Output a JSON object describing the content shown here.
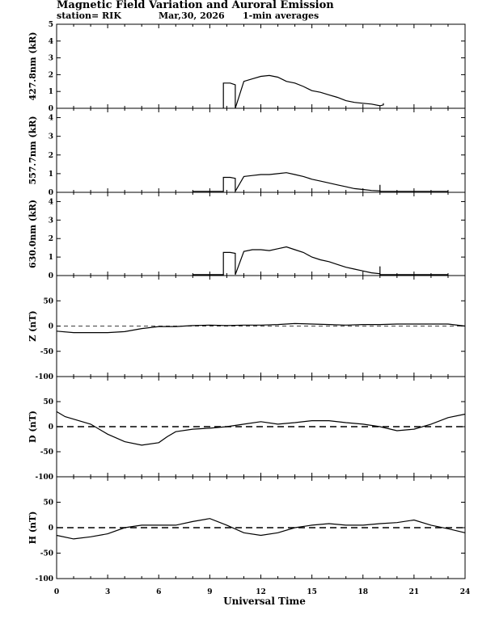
{
  "header": {
    "title": "Magnetic Field Variation and Auroral Emission",
    "station": "station= RIK",
    "date": "Mar,30, 2026",
    "note": "1-min averages"
  },
  "chart_data": [
    {
      "type": "line",
      "name": "panel-4278",
      "ylabel": "427.8nm (kR)",
      "ylim": [
        0,
        5
      ],
      "yticks": [
        0,
        1,
        2,
        3,
        4,
        5
      ],
      "xlim": [
        0,
        24
      ],
      "zero_line": "none",
      "series": [
        {
          "name": "427.8nm",
          "x": [
            9.8,
            9.8,
            10.2,
            10.5,
            10.5,
            11.0,
            11.5,
            12.0,
            12.5,
            13.0,
            13.5,
            14.0,
            14.5,
            15.0,
            15.5,
            16.0,
            16.5,
            17.0,
            17.5,
            18.0,
            18.5,
            19.0,
            19.2,
            19.2
          ],
          "y": [
            0,
            1.5,
            1.5,
            1.4,
            0,
            1.6,
            1.75,
            1.9,
            1.95,
            1.85,
            1.6,
            1.5,
            1.3,
            1.05,
            0.95,
            0.8,
            0.65,
            0.45,
            0.35,
            0.3,
            0.25,
            0.15,
            0.2,
            0.3
          ]
        }
      ]
    },
    {
      "type": "line",
      "name": "panel-5577",
      "ylabel": "557.7nm (kR)",
      "ylim": [
        0,
        4.5
      ],
      "yticks": [
        0,
        1,
        2,
        3,
        4
      ],
      "xlim": [
        0,
        24
      ],
      "zero_line": "none",
      "series": [
        {
          "name": "557.7nm",
          "x": [
            8.0,
            9.8,
            9.8,
            10.2,
            10.5,
            10.5,
            11.0,
            11.5,
            12.0,
            12.5,
            13.0,
            13.5,
            14.0,
            14.5,
            15.0,
            15.5,
            16.0,
            16.5,
            17.0,
            17.5,
            18.0,
            18.5,
            19.0,
            19.0,
            19.0,
            23.0
          ],
          "y": [
            0.05,
            0.05,
            0.8,
            0.8,
            0.75,
            0.05,
            0.85,
            0.9,
            0.95,
            0.95,
            1.0,
            1.05,
            0.95,
            0.85,
            0.7,
            0.6,
            0.5,
            0.4,
            0.3,
            0.2,
            0.15,
            0.1,
            0.08,
            0.4,
            0.05,
            0.05
          ]
        }
      ]
    },
    {
      "type": "line",
      "name": "panel-6300",
      "ylabel": "630.0nm (kR)",
      "ylim": [
        0,
        4.5
      ],
      "yticks": [
        0,
        1,
        2,
        3,
        4
      ],
      "xlim": [
        0,
        24
      ],
      "zero_line": "none",
      "series": [
        {
          "name": "630.0nm",
          "x": [
            8.0,
            9.8,
            9.8,
            10.2,
            10.5,
            10.5,
            11.0,
            11.5,
            12.0,
            12.5,
            13.0,
            13.5,
            14.0,
            14.5,
            15.0,
            15.5,
            16.0,
            16.5,
            17.0,
            17.5,
            18.0,
            18.5,
            19.0,
            19.0,
            19.0,
            23.0
          ],
          "y": [
            0.05,
            0.05,
            1.25,
            1.25,
            1.2,
            0.05,
            1.3,
            1.4,
            1.4,
            1.35,
            1.45,
            1.55,
            1.4,
            1.25,
            1.0,
            0.85,
            0.75,
            0.6,
            0.45,
            0.35,
            0.25,
            0.15,
            0.1,
            0.5,
            0.05,
            0.05
          ]
        }
      ]
    },
    {
      "type": "line",
      "name": "panel-z",
      "ylabel": "Z (nT)",
      "ylim": [
        -100,
        100
      ],
      "yticks": [
        -100,
        -50,
        0,
        50
      ],
      "xlim": [
        0,
        24
      ],
      "zero_line": "dashed-thin",
      "series": [
        {
          "name": "Z",
          "x": [
            0,
            1,
            2,
            3,
            4,
            5,
            6,
            7,
            8,
            9,
            10,
            11,
            12,
            13,
            14,
            15,
            16,
            17,
            18,
            19,
            20,
            21,
            22,
            23,
            24
          ],
          "y": [
            -10,
            -13,
            -13,
            -13,
            -11,
            -5,
            -1,
            -1,
            1,
            2,
            1,
            2,
            2,
            3,
            5,
            4,
            3,
            2,
            3,
            3,
            4,
            4,
            4,
            4,
            0
          ]
        }
      ]
    },
    {
      "type": "line",
      "name": "panel-d",
      "ylabel": "D (nT)",
      "ylim": [
        -100,
        100
      ],
      "yticks": [
        -100,
        -50,
        0,
        50
      ],
      "xlim": [
        0,
        24
      ],
      "zero_line": "dashed-thick",
      "series": [
        {
          "name": "D",
          "x": [
            0,
            0.5,
            1,
            2,
            3,
            4,
            5,
            6,
            6.5,
            7,
            8,
            9,
            10,
            11,
            12,
            13,
            14,
            15,
            16,
            17,
            18,
            19,
            20,
            21,
            22,
            23,
            24
          ],
          "y": [
            30,
            20,
            15,
            5,
            -15,
            -30,
            -37,
            -32,
            -20,
            -10,
            -5,
            -3,
            0,
            5,
            10,
            5,
            8,
            12,
            12,
            8,
            5,
            0,
            -8,
            -5,
            5,
            18,
            25
          ]
        }
      ]
    },
    {
      "type": "line",
      "name": "panel-h",
      "ylabel": "H (nT)",
      "ylim": [
        -100,
        100
      ],
      "yticks": [
        -100,
        -50,
        0,
        50
      ],
      "xlim": [
        0,
        24
      ],
      "zero_line": "dashed-thick",
      "series": [
        {
          "name": "H",
          "x": [
            0,
            1,
            2,
            3,
            4,
            5,
            6,
            7,
            8,
            9,
            10,
            11,
            12,
            13,
            14,
            15,
            16,
            17,
            18,
            19,
            20,
            21,
            22,
            23,
            24
          ],
          "y": [
            -15,
            -22,
            -18,
            -12,
            0,
            5,
            5,
            5,
            12,
            18,
            5,
            -10,
            -15,
            -10,
            0,
            5,
            8,
            5,
            5,
            8,
            10,
            15,
            5,
            -2,
            -10
          ]
        }
      ]
    }
  ],
  "xaxis": {
    "label": "Universal Time",
    "ticks": [
      0,
      3,
      6,
      9,
      12,
      15,
      18,
      21,
      24
    ]
  }
}
